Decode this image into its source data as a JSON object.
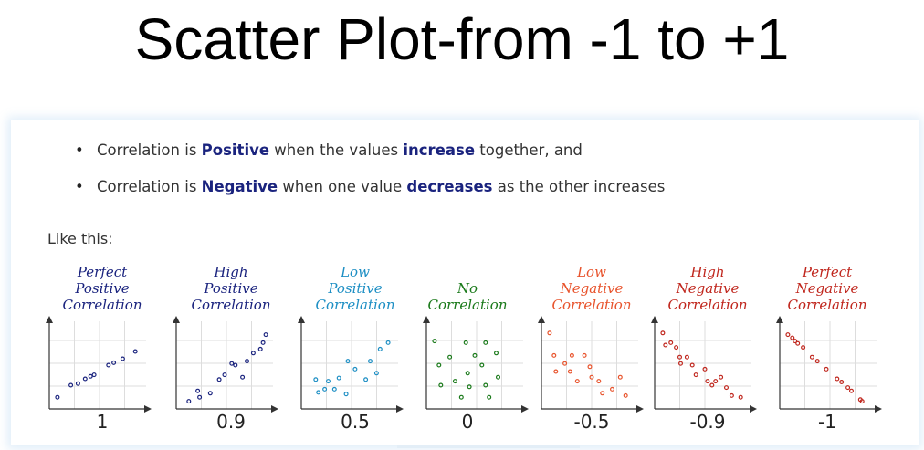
{
  "title": "Scatter Plot-from -1 to +1",
  "bullets": [
    {
      "pre": "Correlation is ",
      "bold1": "Positive",
      "mid": " when the values ",
      "bold2": "increase",
      "post": " together, and"
    },
    {
      "pre": "Correlation is ",
      "bold1": "Negative",
      "mid": " when one value ",
      "bold2": "decreases",
      "post": " as the other increases"
    }
  ],
  "like_this": "Like this:",
  "chart_data": {
    "type": "scatter",
    "grid": true,
    "charts": [
      {
        "label": [
          "Perfect",
          "Positive",
          "Correlation"
        ],
        "color": "#1a237e",
        "value": "1",
        "points": [
          [
            0.05,
            0.1
          ],
          [
            0.2,
            0.25
          ],
          [
            0.28,
            0.27
          ],
          [
            0.36,
            0.33
          ],
          [
            0.42,
            0.36
          ],
          [
            0.46,
            0.38
          ],
          [
            0.62,
            0.5
          ],
          [
            0.68,
            0.53
          ],
          [
            0.78,
            0.58
          ],
          [
            0.92,
            0.67
          ]
        ]
      },
      {
        "label": [
          "High",
          "Positive",
          "Correlation"
        ],
        "color": "#1a237e",
        "value": "0.9",
        "points": [
          [
            0.1,
            0.05
          ],
          [
            0.2,
            0.18
          ],
          [
            0.22,
            0.1
          ],
          [
            0.34,
            0.15
          ],
          [
            0.44,
            0.32
          ],
          [
            0.5,
            0.38
          ],
          [
            0.58,
            0.52
          ],
          [
            0.62,
            0.5
          ],
          [
            0.7,
            0.35
          ],
          [
            0.75,
            0.55
          ],
          [
            0.82,
            0.65
          ],
          [
            0.9,
            0.7
          ],
          [
            0.93,
            0.78
          ],
          [
            0.96,
            0.88
          ]
        ]
      },
      {
        "label": [
          "Low",
          "Positive",
          "Correlation"
        ],
        "color": "#1e8fc4",
        "value": "0.5",
        "points": [
          [
            0.12,
            0.32
          ],
          [
            0.15,
            0.16
          ],
          [
            0.22,
            0.2
          ],
          [
            0.26,
            0.3
          ],
          [
            0.33,
            0.2
          ],
          [
            0.38,
            0.34
          ],
          [
            0.46,
            0.14
          ],
          [
            0.48,
            0.55
          ],
          [
            0.56,
            0.45
          ],
          [
            0.68,
            0.32
          ],
          [
            0.73,
            0.55
          ],
          [
            0.8,
            0.4
          ],
          [
            0.84,
            0.7
          ],
          [
            0.93,
            0.78
          ]
        ]
      },
      {
        "label": [
          "No",
          "Correlation"
        ],
        "color": "#1b7a1b",
        "value": "0",
        "points": [
          [
            0.05,
            0.8
          ],
          [
            0.1,
            0.5
          ],
          [
            0.12,
            0.25
          ],
          [
            0.22,
            0.6
          ],
          [
            0.28,
            0.3
          ],
          [
            0.35,
            0.1
          ],
          [
            0.4,
            0.78
          ],
          [
            0.42,
            0.4
          ],
          [
            0.44,
            0.23
          ],
          [
            0.5,
            0.62
          ],
          [
            0.58,
            0.5
          ],
          [
            0.62,
            0.78
          ],
          [
            0.62,
            0.25
          ],
          [
            0.66,
            0.1
          ],
          [
            0.74,
            0.65
          ],
          [
            0.76,
            0.35
          ]
        ]
      },
      {
        "label": [
          "Low",
          "Negative",
          "Correlation"
        ],
        "color": "#e8542d",
        "value": "-0.5",
        "points": [
          [
            0.05,
            0.9
          ],
          [
            0.1,
            0.62
          ],
          [
            0.12,
            0.42
          ],
          [
            0.22,
            0.52
          ],
          [
            0.28,
            0.42
          ],
          [
            0.3,
            0.62
          ],
          [
            0.36,
            0.3
          ],
          [
            0.44,
            0.62
          ],
          [
            0.5,
            0.48
          ],
          [
            0.52,
            0.35
          ],
          [
            0.6,
            0.3
          ],
          [
            0.64,
            0.15
          ],
          [
            0.75,
            0.2
          ],
          [
            0.84,
            0.35
          ],
          [
            0.9,
            0.12
          ]
        ]
      },
      {
        "label": [
          "High",
          "Negative",
          "Correlation"
        ],
        "color": "#c0271e",
        "value": "-0.9",
        "points": [
          [
            0.05,
            0.9
          ],
          [
            0.08,
            0.75
          ],
          [
            0.14,
            0.78
          ],
          [
            0.2,
            0.72
          ],
          [
            0.24,
            0.6
          ],
          [
            0.25,
            0.52
          ],
          [
            0.32,
            0.6
          ],
          [
            0.38,
            0.5
          ],
          [
            0.42,
            0.38
          ],
          [
            0.52,
            0.45
          ],
          [
            0.55,
            0.3
          ],
          [
            0.6,
            0.25
          ],
          [
            0.64,
            0.3
          ],
          [
            0.7,
            0.35
          ],
          [
            0.76,
            0.22
          ],
          [
            0.82,
            0.12
          ],
          [
            0.92,
            0.1
          ]
        ]
      },
      {
        "label": [
          "Perfect",
          "Negative",
          "Correlation"
        ],
        "color": "#c0271e",
        "value": "-1",
        "points": [
          [
            0.05,
            0.88
          ],
          [
            0.1,
            0.84
          ],
          [
            0.13,
            0.8
          ],
          [
            0.16,
            0.77
          ],
          [
            0.22,
            0.72
          ],
          [
            0.32,
            0.6
          ],
          [
            0.38,
            0.55
          ],
          [
            0.48,
            0.45
          ],
          [
            0.6,
            0.33
          ],
          [
            0.65,
            0.29
          ],
          [
            0.72,
            0.22
          ],
          [
            0.76,
            0.18
          ],
          [
            0.86,
            0.07
          ],
          [
            0.88,
            0.05
          ]
        ]
      }
    ]
  }
}
